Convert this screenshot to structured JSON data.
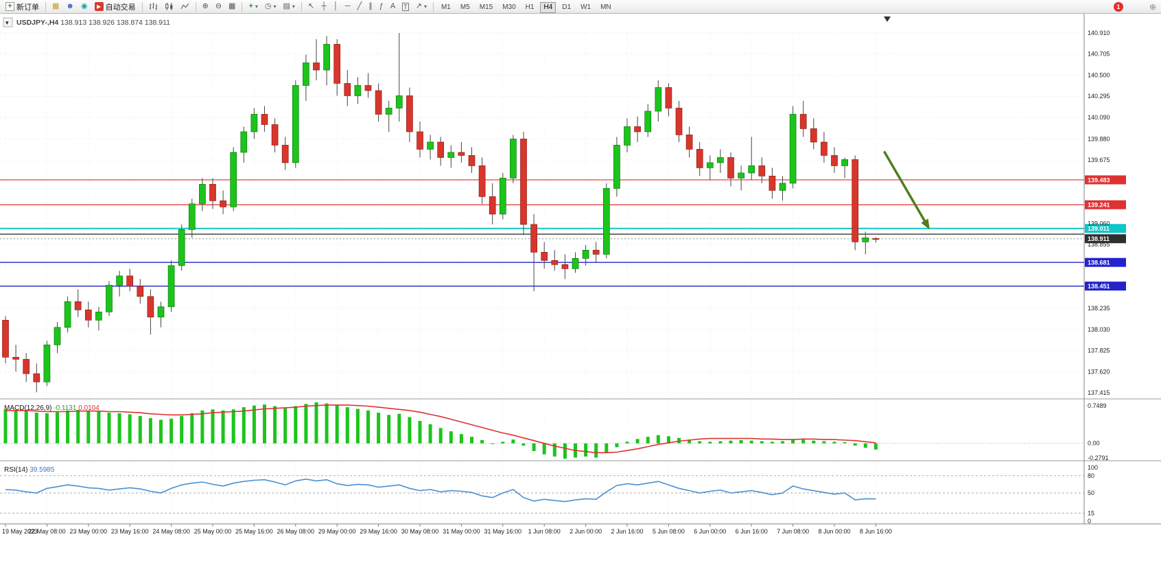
{
  "toolbar": {
    "new_order_label": "新订单",
    "autotrade_label": "自动交易",
    "timeframes": [
      "M1",
      "M5",
      "M15",
      "M30",
      "H1",
      "H4",
      "D1",
      "W1",
      "MN"
    ],
    "active_timeframe": "H4",
    "badge": "1"
  },
  "icons": {
    "new_order": "+",
    "charts": "▦",
    "profiles": "☻",
    "navigator": "◉",
    "autotrade": "▶",
    "zoom_in": "⊕",
    "zoom_out": "⊖",
    "tile": "▦",
    "indicators": "+",
    "periods": "◷",
    "templates": "▤",
    "dropdown": "▾",
    "cursor": "↖",
    "crosshair": "┼",
    "vline": "│",
    "hline": "─",
    "trendline": "╱",
    "channel": "∥",
    "fibonacci": "ƒ",
    "text": "A",
    "label": "T",
    "arrows": "↗",
    "corner_zoom": "⊕",
    "symbol_dropdown": "▾"
  },
  "chart": {
    "symbol_period": "USDJPY-,H4",
    "ohlc": "138.913 138.926 138.874 138.911"
  },
  "chart_data": {
    "type": "candlestick",
    "symbol": "USDJPY-",
    "timeframe": "H4",
    "current_bar": {
      "open": 138.913,
      "high": 138.926,
      "low": 138.874,
      "close": 138.911
    },
    "colors": {
      "up": "#1cc41c",
      "up_stroke": "#0a7a0a",
      "down": "#d8362c",
      "down_stroke": "#8f1d16",
      "wick": "#444444",
      "macd_hist": "#1cc41c",
      "macd_signal": "#e03030",
      "rsi_line": "#4a8fd2",
      "grid": "#e2e2e2",
      "arrow": "#4e7f1f"
    },
    "y_axis": {
      "min": 137.415,
      "max": 140.91,
      "ticks": [
        [
          140.91,
          "140.910"
        ],
        [
          140.705,
          "140.705"
        ],
        [
          140.5,
          "140.500"
        ],
        [
          140.295,
          "140.295"
        ],
        [
          140.09,
          "140.090"
        ],
        [
          139.88,
          "139.880"
        ],
        [
          139.675,
          "139.675"
        ],
        [
          139.47,
          null
        ],
        [
          139.265,
          null
        ],
        [
          139.06,
          "139.060"
        ],
        [
          138.855,
          "138.855"
        ],
        [
          138.65,
          null
        ],
        [
          138.445,
          null
        ],
        [
          138.235,
          "138.235"
        ],
        [
          138.03,
          "138.030"
        ],
        [
          137.825,
          "137.825"
        ],
        [
          137.62,
          "137.620"
        ],
        [
          137.415,
          "137.415"
        ]
      ]
    },
    "bars_per_label": 4,
    "x_labels": [
      "19 May 2023",
      "22 May 08:00",
      "23 May 00:00",
      "23 May 16:00",
      "24 May 08:00",
      "25 May 00:00",
      "25 May 16:00",
      "26 May 08:00",
      "29 May 00:00",
      "29 May 16:00",
      "30 May 08:00",
      "31 May 00:00",
      "31 May 16:00",
      "1 Jun 08:00",
      "2 Jun 00:00",
      "2 Jun 16:00",
      "5 Jun 08:00",
      "6 Jun 00:00",
      "6 Jun 16:00",
      "7 Jun 08:00",
      "8 Jun 00:00",
      "8 Jun 16:00"
    ],
    "hlines": [
      {
        "price": 139.483,
        "color": "#e03131",
        "width": 1.2,
        "badge_label": "139.483",
        "badge_bg": "#e03131"
      },
      {
        "price": 139.241,
        "color": "#e03131",
        "width": 1.2,
        "badge_label": "139.241",
        "badge_bg": "#e03131"
      },
      {
        "price": 139.011,
        "color": "#0fc7c7",
        "width": 2,
        "badge_label": "139.011",
        "badge_bg": "#0fc7c7"
      },
      {
        "price": 138.955,
        "color": "#333333",
        "width": 1.4
      },
      {
        "price": 138.911,
        "color": "#888888",
        "width": 1,
        "dash": "2,3",
        "badge_label": "138.911",
        "badge_bg": "#2f2f2f"
      },
      {
        "price": 138.681,
        "color": "#2323cc",
        "width": 1.4,
        "badge_label": "138.681",
        "badge_bg": "#2323cc"
      },
      {
        "price": 138.451,
        "color": "#2323cc",
        "width": 1.4,
        "badge_label": "138.451",
        "badge_bg": "#2323cc"
      }
    ],
    "arrow": {
      "bar1": 84.8,
      "price1": 139.76,
      "bar2": 89.2,
      "price2": 139.0,
      "color": "#4e7f1f"
    },
    "candles": [
      [
        138.12,
        138.16,
        137.7,
        137.76
      ],
      [
        137.76,
        137.88,
        137.62,
        137.74
      ],
      [
        137.74,
        137.8,
        137.52,
        137.6
      ],
      [
        137.6,
        137.7,
        137.42,
        137.52
      ],
      [
        137.52,
        137.92,
        137.48,
        137.88
      ],
      [
        137.88,
        138.1,
        137.8,
        138.05
      ],
      [
        138.05,
        138.35,
        138.0,
        138.3
      ],
      [
        138.3,
        138.42,
        138.15,
        138.22
      ],
      [
        138.22,
        138.3,
        138.05,
        138.12
      ],
      [
        138.12,
        138.25,
        138.02,
        138.2
      ],
      [
        138.2,
        138.5,
        138.16,
        138.46
      ],
      [
        138.46,
        138.6,
        138.35,
        138.55
      ],
      [
        138.55,
        138.62,
        138.4,
        138.45
      ],
      [
        138.45,
        138.52,
        138.28,
        138.35
      ],
      [
        138.35,
        138.42,
        137.98,
        138.15
      ],
      [
        138.15,
        138.3,
        138.05,
        138.25
      ],
      [
        138.25,
        138.7,
        138.2,
        138.65
      ],
      [
        138.65,
        139.05,
        138.6,
        139.0
      ],
      [
        139.0,
        139.3,
        138.92,
        139.25
      ],
      [
        139.25,
        139.5,
        139.18,
        139.44
      ],
      [
        139.44,
        139.5,
        139.2,
        139.28
      ],
      [
        139.28,
        139.38,
        139.15,
        139.22
      ],
      [
        139.22,
        139.8,
        139.18,
        139.75
      ],
      [
        139.75,
        140.0,
        139.65,
        139.95
      ],
      [
        139.95,
        140.18,
        139.88,
        140.12
      ],
      [
        140.12,
        140.2,
        139.95,
        140.02
      ],
      [
        140.02,
        140.08,
        139.75,
        139.82
      ],
      [
        139.82,
        139.9,
        139.58,
        139.65
      ],
      [
        139.65,
        140.45,
        139.6,
        140.4
      ],
      [
        140.4,
        140.7,
        140.25,
        140.62
      ],
      [
        140.62,
        140.85,
        140.45,
        140.55
      ],
      [
        140.55,
        140.88,
        140.4,
        140.8
      ],
      [
        140.8,
        140.85,
        140.3,
        140.42
      ],
      [
        140.42,
        140.55,
        140.2,
        140.3
      ],
      [
        140.3,
        140.48,
        140.22,
        140.4
      ],
      [
        140.4,
        140.52,
        140.28,
        140.35
      ],
      [
        140.35,
        140.42,
        140.05,
        140.12
      ],
      [
        140.12,
        140.25,
        139.95,
        140.18
      ],
      [
        140.18,
        140.91,
        140.05,
        140.3
      ],
      [
        140.3,
        140.38,
        139.85,
        139.95
      ],
      [
        139.95,
        140.05,
        139.7,
        139.78
      ],
      [
        139.78,
        139.92,
        139.68,
        139.85
      ],
      [
        139.85,
        139.9,
        139.62,
        139.7
      ],
      [
        139.7,
        139.82,
        139.6,
        139.75
      ],
      [
        139.75,
        139.85,
        139.65,
        139.72
      ],
      [
        139.72,
        139.8,
        139.55,
        139.62
      ],
      [
        139.62,
        139.7,
        139.25,
        139.32
      ],
      [
        139.32,
        139.45,
        139.05,
        139.15
      ],
      [
        139.15,
        139.55,
        139.1,
        139.5
      ],
      [
        139.5,
        139.92,
        139.45,
        139.88
      ],
      [
        139.88,
        139.95,
        138.95,
        139.05
      ],
      [
        139.05,
        139.15,
        138.4,
        138.78
      ],
      [
        138.78,
        138.88,
        138.62,
        138.7
      ],
      [
        138.7,
        138.8,
        138.6,
        138.66
      ],
      [
        138.66,
        138.76,
        138.52,
        138.62
      ],
      [
        138.62,
        138.78,
        138.58,
        138.72
      ],
      [
        138.72,
        138.85,
        138.65,
        138.8
      ],
      [
        138.8,
        138.88,
        138.68,
        138.76
      ],
      [
        138.76,
        139.45,
        138.72,
        139.4
      ],
      [
        139.4,
        139.9,
        139.32,
        139.82
      ],
      [
        139.82,
        140.08,
        139.75,
        140.0
      ],
      [
        140.0,
        140.1,
        139.85,
        139.95
      ],
      [
        139.95,
        140.22,
        139.9,
        140.15
      ],
      [
        140.15,
        140.45,
        140.05,
        140.38
      ],
      [
        140.38,
        140.42,
        140.1,
        140.18
      ],
      [
        140.18,
        140.25,
        139.85,
        139.92
      ],
      [
        139.92,
        140.0,
        139.7,
        139.78
      ],
      [
        139.78,
        139.85,
        139.52,
        139.6
      ],
      [
        139.6,
        139.72,
        139.48,
        139.65
      ],
      [
        139.65,
        139.78,
        139.55,
        139.7
      ],
      [
        139.7,
        139.75,
        139.42,
        139.5
      ],
      [
        139.5,
        139.62,
        139.38,
        139.55
      ],
      [
        139.55,
        139.9,
        139.48,
        139.62
      ],
      [
        139.62,
        139.7,
        139.45,
        139.52
      ],
      [
        139.52,
        139.6,
        139.3,
        139.38
      ],
      [
        139.38,
        139.52,
        139.28,
        139.45
      ],
      [
        139.45,
        140.2,
        139.4,
        140.12
      ],
      [
        140.12,
        140.25,
        139.9,
        139.98
      ],
      [
        139.98,
        140.08,
        139.78,
        139.85
      ],
      [
        139.85,
        139.95,
        139.65,
        139.72
      ],
      [
        139.72,
        139.8,
        139.55,
        139.62
      ],
      [
        139.62,
        139.7,
        139.5,
        139.68
      ],
      [
        139.68,
        139.72,
        138.8,
        138.88
      ],
      [
        138.88,
        138.98,
        138.76,
        138.92
      ],
      [
        138.913,
        138.926,
        138.874,
        138.911
      ]
    ],
    "macd": {
      "label": "MACD(12,26,9)",
      "value_main": "-0.1131",
      "value_signal": "0.0104",
      "max": 0.7489,
      "min": -0.2791,
      "axis_ticks": [
        [
          0.7489,
          "0.7489"
        ],
        [
          0,
          "0.00"
        ],
        [
          -0.2791,
          "-0.2791"
        ]
      ],
      "histogram": [
        0.62,
        0.61,
        0.59,
        0.56,
        0.55,
        0.57,
        0.6,
        0.61,
        0.6,
        0.58,
        0.56,
        0.55,
        0.53,
        0.5,
        0.46,
        0.43,
        0.45,
        0.5,
        0.55,
        0.6,
        0.62,
        0.6,
        0.62,
        0.66,
        0.69,
        0.71,
        0.68,
        0.64,
        0.68,
        0.72,
        0.7489,
        0.73,
        0.7,
        0.66,
        0.63,
        0.6,
        0.56,
        0.52,
        0.54,
        0.48,
        0.41,
        0.35,
        0.28,
        0.22,
        0.17,
        0.12,
        0.06,
        0.0,
        0.03,
        0.07,
        -0.04,
        -0.14,
        -0.2,
        -0.24,
        -0.2791,
        -0.26,
        -0.24,
        -0.26,
        -0.18,
        -0.07,
        0.03,
        0.08,
        0.12,
        0.15,
        0.13,
        0.1,
        0.07,
        0.04,
        0.03,
        0.04,
        0.05,
        0.06,
        0.05,
        0.04,
        0.03,
        0.04,
        0.08,
        0.07,
        0.05,
        0.04,
        0.03,
        0.02,
        -0.04,
        -0.08,
        -0.1131
      ],
      "signal": [
        0.6,
        0.6,
        0.6,
        0.59,
        0.58,
        0.58,
        0.58,
        0.59,
        0.59,
        0.59,
        0.58,
        0.58,
        0.57,
        0.56,
        0.54,
        0.53,
        0.52,
        0.52,
        0.53,
        0.54,
        0.56,
        0.57,
        0.58,
        0.59,
        0.61,
        0.63,
        0.64,
        0.65,
        0.66,
        0.68,
        0.69,
        0.7,
        0.7,
        0.7,
        0.69,
        0.68,
        0.66,
        0.64,
        0.62,
        0.6,
        0.57,
        0.53,
        0.49,
        0.44,
        0.39,
        0.34,
        0.29,
        0.24,
        0.19,
        0.15,
        0.1,
        0.05,
        0.0,
        -0.05,
        -0.09,
        -0.13,
        -0.15,
        -0.17,
        -0.17,
        -0.16,
        -0.13,
        -0.1,
        -0.06,
        -0.02,
        0.01,
        0.04,
        0.06,
        0.08,
        0.09,
        0.09,
        0.09,
        0.09,
        0.09,
        0.08,
        0.08,
        0.07,
        0.07,
        0.08,
        0.08,
        0.07,
        0.07,
        0.06,
        0.05,
        0.03,
        0.0104
      ]
    },
    "rsi": {
      "label": "RSI(14)",
      "value": "39.5985",
      "levels": [
        80,
        50,
        15
      ],
      "axis_ticks": [
        [
          100,
          "100"
        ],
        [
          80,
          "80"
        ],
        [
          50,
          "50"
        ],
        [
          15,
          "15"
        ],
        [
          0,
          "0"
        ]
      ],
      "values": [
        56,
        55,
        52,
        50,
        58,
        61,
        64,
        62,
        59,
        58,
        55,
        57,
        59,
        57,
        53,
        50,
        58,
        64,
        67,
        69,
        65,
        62,
        67,
        70,
        72,
        73,
        69,
        64,
        71,
        74,
        71,
        73,
        66,
        63,
        65,
        64,
        60,
        62,
        64,
        58,
        54,
        56,
        52,
        54,
        53,
        51,
        45,
        42,
        50,
        56,
        42,
        36,
        39,
        37,
        35,
        38,
        40,
        39,
        52,
        63,
        66,
        64,
        67,
        70,
        64,
        58,
        54,
        50,
        53,
        55,
        50,
        52,
        54,
        51,
        47,
        50,
        62,
        57,
        54,
        51,
        48,
        50,
        38,
        40,
        39.5985
      ]
    }
  }
}
